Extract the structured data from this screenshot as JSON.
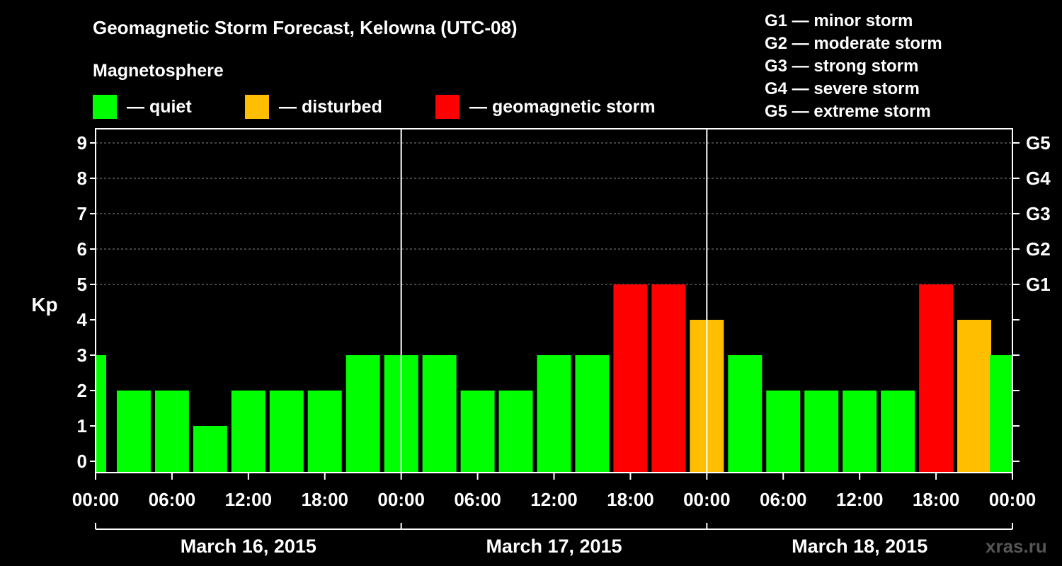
{
  "chart_data": {
    "type": "bar",
    "title": "Geomagnetic Storm Forecast, Kelowna (UTC-08)",
    "legend": {
      "heading": "Magnetosphere",
      "items": [
        {
          "label": "— quiet",
          "color": "#00ff00"
        },
        {
          "label": "— disturbed",
          "color": "#ffbf00"
        },
        {
          "label": "— geomagnetic storm",
          "color": "#ff0000"
        }
      ]
    },
    "storm_scale": [
      "G1 — minor storm",
      "G2 — moderate storm",
      "G3 — strong storm",
      "G4 — severe storm",
      "G5 — extreme storm"
    ],
    "ylabel": "Kp",
    "ylim": [
      0,
      9
    ],
    "yticks": [
      "0",
      "1",
      "2",
      "3",
      "4",
      "5",
      "6",
      "7",
      "8",
      "9"
    ],
    "right_ticks": [
      "G1",
      "G2",
      "G3",
      "G4",
      "G5"
    ],
    "x_tick_labels": [
      "00:00",
      "06:00",
      "12:00",
      "18:00",
      "00:00",
      "06:00",
      "12:00",
      "18:00",
      "00:00",
      "06:00",
      "12:00",
      "18:00",
      "00:00"
    ],
    "days": [
      "March 16, 2015",
      "March 17, 2015",
      "March 18, 2015"
    ],
    "interval_hours": 3,
    "values": [
      3,
      2,
      2,
      1,
      2,
      2,
      2,
      3,
      3,
      3,
      2,
      2,
      3,
      3,
      5,
      5,
      4,
      3,
      2,
      2,
      2,
      2,
      5,
      4,
      3
    ],
    "colors": {
      "quiet": "#00ff00",
      "disturbed": "#ffbf00",
      "storm": "#ff0000"
    },
    "grid": true
  },
  "watermark": "xras.ru"
}
